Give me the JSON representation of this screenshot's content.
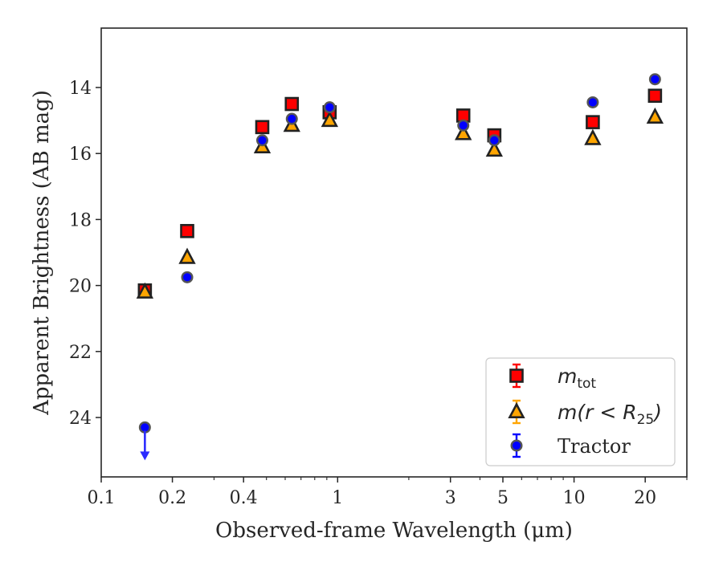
{
  "chart_data": {
    "type": "scatter",
    "title": "",
    "xlabel": "Observed-frame Wavelength (μm)",
    "ylabel": "Apparent Brightness (AB mag)",
    "xscale": "log",
    "xlim": [
      0.1,
      30
    ],
    "ylim": [
      25.8,
      12.2
    ],
    "y_inverted": true,
    "grid": false,
    "legend_position": "lower-right",
    "x_ticks": [
      {
        "value": 0.1,
        "label": "0.1"
      },
      {
        "value": 0.2,
        "label": "0.2"
      },
      {
        "value": 0.4,
        "label": "0.4"
      },
      {
        "value": 1,
        "label": "1"
      },
      {
        "value": 3,
        "label": "3"
      },
      {
        "value": 5,
        "label": "5"
      },
      {
        "value": 10,
        "label": "10"
      },
      {
        "value": 20,
        "label": "20"
      }
    ],
    "y_ticks": [
      {
        "value": 14,
        "label": "14"
      },
      {
        "value": 16,
        "label": "16"
      },
      {
        "value": 18,
        "label": "18"
      },
      {
        "value": 20,
        "label": "20"
      },
      {
        "value": 22,
        "label": "22"
      },
      {
        "value": 24,
        "label": "24"
      }
    ],
    "series": [
      {
        "key": "mtot",
        "legend_main": "m",
        "legend_sub": "tot",
        "legend_rest": "",
        "marker": "square",
        "color": "#ff0000",
        "errorbar_color": "#ff0000",
        "points": [
          {
            "x": 0.153,
            "y": 20.15
          },
          {
            "x": 0.231,
            "y": 18.35
          },
          {
            "x": 0.48,
            "y": 15.2
          },
          {
            "x": 0.64,
            "y": 14.5
          },
          {
            "x": 0.925,
            "y": 14.75
          },
          {
            "x": 3.4,
            "y": 14.85
          },
          {
            "x": 4.6,
            "y": 15.45
          },
          {
            "x": 12.0,
            "y": 15.05
          },
          {
            "x": 22.0,
            "y": 14.25
          }
        ]
      },
      {
        "key": "mr25",
        "legend_main": "m",
        "legend_sub": "25",
        "legend_rest": "(r < R",
        "legend_close": ")",
        "marker": "triangle",
        "color": "#ffa500",
        "errorbar_color": "#ffa500",
        "points": [
          {
            "x": 0.153,
            "y": 20.2
          },
          {
            "x": 0.231,
            "y": 19.15
          },
          {
            "x": 0.48,
            "y": 15.8
          },
          {
            "x": 0.64,
            "y": 15.15
          },
          {
            "x": 0.925,
            "y": 15.0
          },
          {
            "x": 3.4,
            "y": 15.4
          },
          {
            "x": 4.6,
            "y": 15.9
          },
          {
            "x": 12.0,
            "y": 15.55
          },
          {
            "x": 22.0,
            "y": 14.9
          }
        ]
      },
      {
        "key": "tractor",
        "legend_label": "Tractor",
        "marker": "circle",
        "color": "#0000ff",
        "errorbar_color": "#0000ff",
        "points": [
          {
            "x": 0.153,
            "y": 24.3,
            "upper_limit": true
          },
          {
            "x": 0.231,
            "y": 19.75
          },
          {
            "x": 0.48,
            "y": 15.6
          },
          {
            "x": 0.64,
            "y": 14.95
          },
          {
            "x": 0.925,
            "y": 14.6
          },
          {
            "x": 3.4,
            "y": 15.15
          },
          {
            "x": 4.6,
            "y": 15.6
          },
          {
            "x": 12.0,
            "y": 14.45
          },
          {
            "x": 22.0,
            "y": 13.75
          }
        ]
      }
    ]
  }
}
